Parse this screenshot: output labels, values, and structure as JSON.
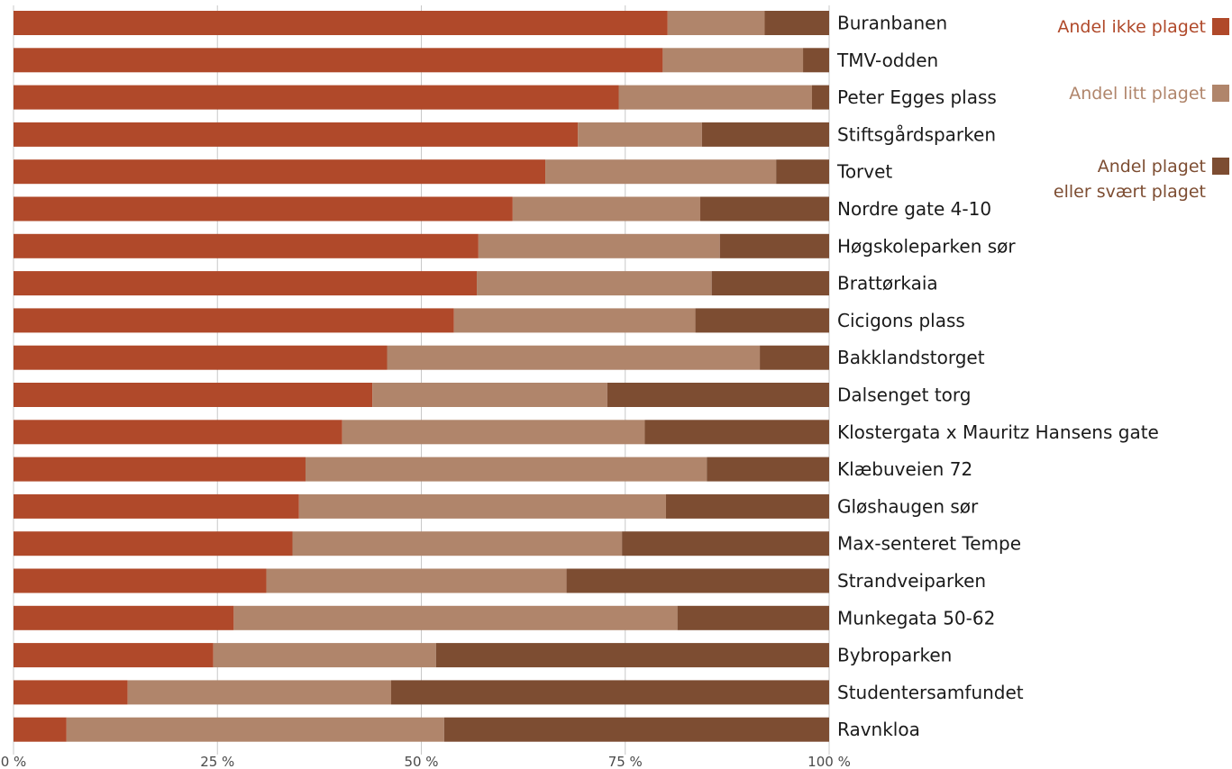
{
  "chart_data": {
    "type": "bar",
    "orientation": "horizontal",
    "stacked": true,
    "title": "",
    "xlabel": "",
    "ylabel": "",
    "xlim": [
      0,
      100
    ],
    "grid": true,
    "legend_position": "top-right",
    "x_ticks": [
      "0 %",
      "25 %",
      "50 %",
      "75 %",
      "100 %"
    ],
    "x_tick_values": [
      0,
      25,
      50,
      75,
      100
    ],
    "categories": [
      "Buranbanen",
      "TMV-odden",
      "Peter Egges plass",
      "Stiftsgårdsparken",
      "Torvet",
      "Nordre gate 4-10",
      "Høgskoleparken sør",
      "Brattørkaia",
      "Cicigons plass",
      "Bakklandstorget",
      "Dalsenget torg",
      "Klostergata x Mauritz Hansens gate",
      "Klæbuveien 72",
      "Gløshaugen sør",
      "Max-senteret Tempe",
      "Strandveiparken",
      "Munkegata 50-62",
      "Bybroparken",
      "Studentersamfundet",
      "Ravnkloa"
    ],
    "series": [
      {
        "name": "Andel ikke plaget",
        "color": "#B0492A",
        "values": [
          80.2,
          79.6,
          74.2,
          69.2,
          65.2,
          61.2,
          57.0,
          56.8,
          54.0,
          45.8,
          44.0,
          40.3,
          35.8,
          35.0,
          34.2,
          31.0,
          27.0,
          24.5,
          14.0,
          6.5
        ]
      },
      {
        "name": "Andel litt plaget",
        "color": "#B0856B",
        "values": [
          11.9,
          17.2,
          23.7,
          15.2,
          28.3,
          23.0,
          29.6,
          28.8,
          29.6,
          45.7,
          28.8,
          37.1,
          49.2,
          45.0,
          40.4,
          36.8,
          54.4,
          27.3,
          32.3,
          46.3
        ]
      },
      {
        "name": "Andel plaget\neller svært plaget",
        "color": "#7D4D32",
        "values": [
          7.9,
          3.2,
          2.1,
          15.6,
          6.5,
          15.8,
          13.4,
          14.4,
          16.4,
          8.5,
          27.2,
          22.6,
          15.0,
          20.0,
          25.4,
          32.2,
          18.6,
          48.2,
          53.7,
          47.2
        ]
      }
    ]
  },
  "legend": {
    "items": [
      {
        "lines": [
          "Andel ikke plaget"
        ],
        "color": "#B0492A"
      },
      {
        "lines": [
          "Andel litt plaget"
        ],
        "color": "#B0856B"
      },
      {
        "lines": [
          "Andel plaget",
          "eller svært plaget"
        ],
        "color": "#7D4D32"
      }
    ]
  }
}
